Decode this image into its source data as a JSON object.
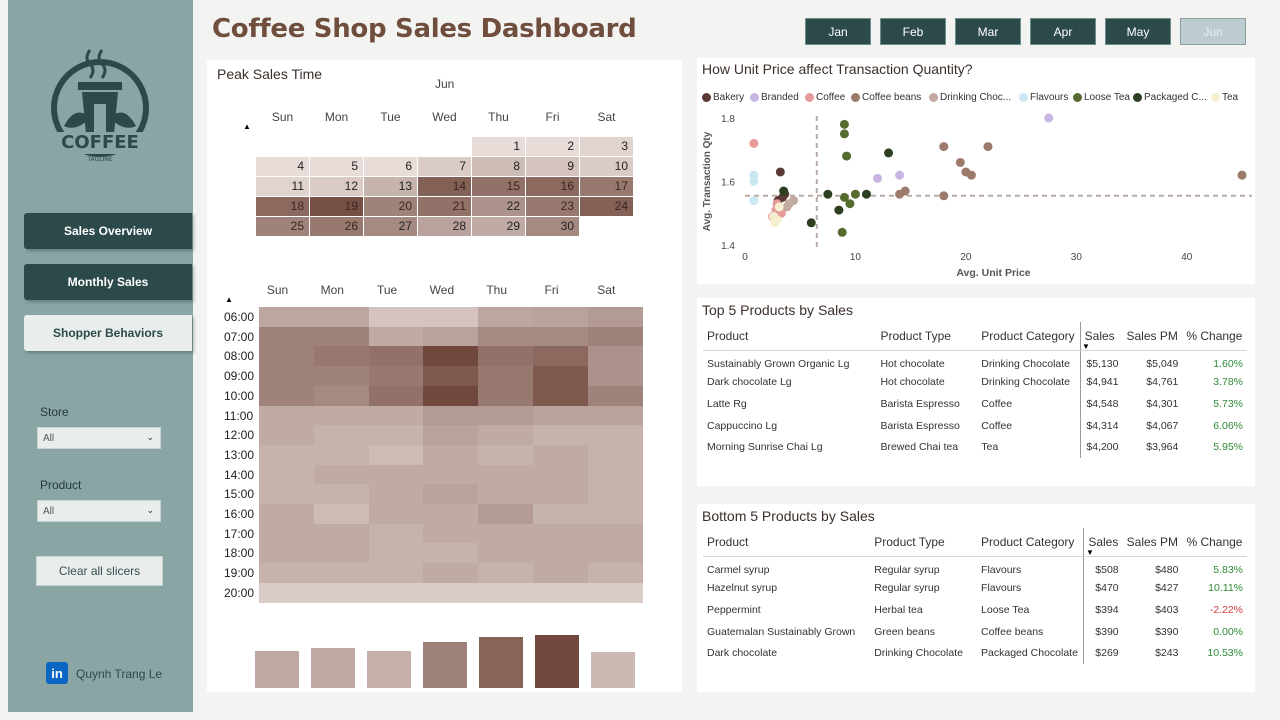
{
  "title": "Coffee Shop Sales Dashboard",
  "months": [
    {
      "label": "Jan",
      "active": false
    },
    {
      "label": "Feb",
      "active": false
    },
    {
      "label": "Mar",
      "active": false
    },
    {
      "label": "Apr",
      "active": false
    },
    {
      "label": "May",
      "active": false
    },
    {
      "label": "Jun",
      "active": true
    }
  ],
  "sidebar": {
    "logo_text": "COFFEE",
    "logo_tagline": "TAGLINE",
    "nav": [
      {
        "label": "Sales Overview"
      },
      {
        "label": "Monthly Sales"
      },
      {
        "label": "Shopper Behaviors"
      }
    ],
    "store_label": "Store",
    "store_value": "All",
    "product_label": "Product",
    "product_value": "All",
    "clear_label": "Clear all slicers",
    "author": "Quynh Trang Le",
    "linkedin_text": "in"
  },
  "peak": {
    "title": "Peak Sales Time",
    "month": "Jun",
    "days": [
      "Sun",
      "Mon",
      "Tue",
      "Wed",
      "Thu",
      "Fri",
      "Sat"
    ],
    "calendar_weeks": [
      [
        null,
        null,
        null,
        null,
        1,
        2,
        3
      ],
      [
        4,
        5,
        6,
        7,
        8,
        9,
        10
      ],
      [
        11,
        12,
        13,
        14,
        15,
        16,
        17
      ],
      [
        18,
        19,
        20,
        21,
        22,
        23,
        24
      ],
      [
        25,
        26,
        27,
        28,
        29,
        30,
        null
      ]
    ],
    "calendar_intensity": [
      [
        null,
        null,
        null,
        null,
        0.05,
        0.05,
        0.1
      ],
      [
        0.05,
        0.05,
        0.05,
        0.15,
        0.25,
        0.2,
        0.15
      ],
      [
        0.1,
        0.15,
        0.3,
        0.8,
        0.7,
        0.75,
        0.65
      ],
      [
        0.75,
        0.9,
        0.6,
        0.7,
        0.5,
        0.65,
        0.8
      ],
      [
        0.6,
        0.65,
        0.55,
        0.4,
        0.35,
        0.55,
        null
      ]
    ],
    "hours": [
      "06:00",
      "07:00",
      "08:00",
      "09:00",
      "10:00",
      "11:00",
      "12:00",
      "13:00",
      "14:00",
      "15:00",
      "16:00",
      "17:00",
      "18:00",
      "19:00",
      "20:00"
    ],
    "heatmap": [
      [
        0.38,
        0.38,
        0.2,
        0.2,
        0.38,
        0.4,
        0.45
      ],
      [
        0.6,
        0.6,
        0.35,
        0.4,
        0.55,
        0.55,
        0.6
      ],
      [
        0.6,
        0.65,
        0.7,
        0.95,
        0.7,
        0.75,
        0.5
      ],
      [
        0.6,
        0.6,
        0.65,
        0.85,
        0.65,
        0.85,
        0.5
      ],
      [
        0.6,
        0.55,
        0.7,
        0.95,
        0.65,
        0.85,
        0.6
      ],
      [
        0.35,
        0.35,
        0.35,
        0.45,
        0.45,
        0.4,
        0.4
      ],
      [
        0.35,
        0.3,
        0.3,
        0.4,
        0.35,
        0.3,
        0.3
      ],
      [
        0.3,
        0.3,
        0.25,
        0.35,
        0.3,
        0.35,
        0.3
      ],
      [
        0.3,
        0.35,
        0.35,
        0.35,
        0.35,
        0.35,
        0.3
      ],
      [
        0.3,
        0.3,
        0.35,
        0.4,
        0.35,
        0.35,
        0.3
      ],
      [
        0.35,
        0.25,
        0.35,
        0.35,
        0.45,
        0.3,
        0.3
      ],
      [
        0.35,
        0.35,
        0.3,
        0.35,
        0.35,
        0.35,
        0.35
      ],
      [
        0.35,
        0.35,
        0.3,
        0.3,
        0.35,
        0.35,
        0.35
      ],
      [
        0.3,
        0.3,
        0.3,
        0.35,
        0.3,
        0.35,
        0.3
      ],
      [
        0.15,
        0.15,
        0.15,
        0.15,
        0.15,
        0.15,
        0.15
      ]
    ],
    "weekday_bars": [
      0.34,
      0.36,
      0.34,
      0.42,
      0.46,
      0.48,
      0.33
    ],
    "weekday_intensity": [
      0.3,
      0.3,
      0.25,
      0.6,
      0.8,
      1.0,
      0.2
    ]
  },
  "scatter": {
    "title": "How Unit Price affect Transaction Quantity?",
    "legend": [
      {
        "name": "Bakery",
        "color": "#5b3a35"
      },
      {
        "name": "Branded",
        "color": "#c9b5e2"
      },
      {
        "name": "Coffee",
        "color": "#e79a9a"
      },
      {
        "name": "Coffee beans",
        "color": "#9c7b6c"
      },
      {
        "name": "Drinking Choc...",
        "color": "#c3aaa0"
      },
      {
        "name": "Flavours",
        "color": "#cbe8f2"
      },
      {
        "name": "Loose Tea",
        "color": "#556b2f"
      },
      {
        "name": "Packaged C...",
        "color": "#2e3f21"
      },
      {
        "name": "Tea",
        "color": "#f6efd0"
      }
    ]
  },
  "chart_data": {
    "type": "scatter",
    "title": "How Unit Price affect Transaction Quantity?",
    "xlabel": "Avg. Unit Price",
    "ylabel": "Avg. Transaction Qty",
    "xlim": [
      0,
      45
    ],
    "ylim": [
      1.4,
      1.8
    ],
    "xticks": [
      0,
      10,
      20,
      30,
      40
    ],
    "yticks": [
      1.4,
      1.6,
      1.8
    ],
    "ref_x": 6.5,
    "ref_y": 1.555,
    "series": [
      {
        "name": "Bakery",
        "points": [
          [
            3.2,
            1.63
          ],
          [
            3.6,
            1.56
          ],
          [
            3.4,
            1.55
          ],
          [
            3.0,
            1.54
          ]
        ]
      },
      {
        "name": "Branded",
        "points": [
          [
            12.0,
            1.61
          ],
          [
            14.0,
            1.62
          ],
          [
            27.5,
            1.8
          ]
        ]
      },
      {
        "name": "Coffee",
        "points": [
          [
            2.8,
            1.51
          ],
          [
            3.0,
            1.52
          ],
          [
            2.5,
            1.49
          ],
          [
            3.3,
            1.5
          ],
          [
            2.9,
            1.53
          ],
          [
            0.8,
            1.72
          ]
        ]
      },
      {
        "name": "Coffee beans",
        "points": [
          [
            14.5,
            1.57
          ],
          [
            18.0,
            1.71
          ],
          [
            19.5,
            1.66
          ],
          [
            20.0,
            1.63
          ],
          [
            20.5,
            1.62
          ],
          [
            22.0,
            1.71
          ],
          [
            14.0,
            1.56
          ],
          [
            18.0,
            1.555
          ],
          [
            45.0,
            1.62
          ]
        ]
      },
      {
        "name": "Drinking Choc...",
        "points": [
          [
            4.0,
            1.53
          ],
          [
            4.4,
            1.54
          ],
          [
            3.8,
            1.52
          ]
        ]
      },
      {
        "name": "Flavours",
        "points": [
          [
            0.8,
            1.62
          ],
          [
            0.8,
            1.6
          ],
          [
            0.8,
            1.54
          ]
        ]
      },
      {
        "name": "Loose Tea",
        "points": [
          [
            9.0,
            1.78
          ],
          [
            9.0,
            1.75
          ],
          [
            9.2,
            1.68
          ],
          [
            9.5,
            1.53
          ],
          [
            9.0,
            1.55
          ],
          [
            8.8,
            1.44
          ],
          [
            10.0,
            1.56
          ]
        ]
      },
      {
        "name": "Packaged C...",
        "points": [
          [
            6.0,
            1.47
          ],
          [
            7.5,
            1.56
          ],
          [
            11.0,
            1.56
          ],
          [
            13.0,
            1.69
          ],
          [
            8.5,
            1.51
          ],
          [
            3.5,
            1.57
          ]
        ]
      },
      {
        "name": "Tea",
        "points": [
          [
            2.6,
            1.49
          ],
          [
            2.7,
            1.47
          ],
          [
            2.9,
            1.48
          ],
          [
            3.1,
            1.52
          ]
        ]
      }
    ]
  },
  "top5": {
    "title": "Top 5 Products by Sales",
    "headers": [
      "Product",
      "Product Type",
      "Product Category",
      "Sales",
      "Sales PM",
      "% Change"
    ],
    "rows": [
      [
        "Sustainably Grown Organic Lg",
        "Hot chocolate",
        "Drinking Chocolate",
        "$5,130",
        "$5,049",
        "1.60%"
      ],
      [
        "Dark chocolate Lg",
        "Hot chocolate",
        "Drinking Chocolate",
        "$4,941",
        "$4,761",
        "3.78%"
      ],
      [
        "Latte Rg",
        "Barista Espresso",
        "Coffee",
        "$4,548",
        "$4,301",
        "5.73%"
      ],
      [
        "Cappuccino Lg",
        "Barista Espresso",
        "Coffee",
        "$4,314",
        "$4,067",
        "6.06%"
      ],
      [
        "Morning Sunrise Chai Lg",
        "Brewed Chai tea",
        "Tea",
        "$4,200",
        "$3,964",
        "5.95%"
      ]
    ]
  },
  "bottom5": {
    "title": "Bottom 5 Products by Sales",
    "headers": [
      "Product",
      "Product Type",
      "Product Category",
      "Sales",
      "Sales PM",
      "% Change"
    ],
    "rows": [
      [
        "Carmel syrup",
        "Regular syrup",
        "Flavours",
        "$508",
        "$480",
        "5.83%"
      ],
      [
        "Hazelnut syrup",
        "Regular syrup",
        "Flavours",
        "$470",
        "$427",
        "10.11%"
      ],
      [
        "Peppermint",
        "Herbal tea",
        "Loose Tea",
        "$394",
        "$403",
        "-2.22%"
      ],
      [
        "Guatemalan Sustainably Grown",
        "Green beans",
        "Coffee beans",
        "$390",
        "$390",
        "0.00%"
      ],
      [
        "Dark chocolate",
        "Drinking Chocolate",
        "Packaged Chocolate",
        "$269",
        "$243",
        "10.53%"
      ]
    ]
  }
}
